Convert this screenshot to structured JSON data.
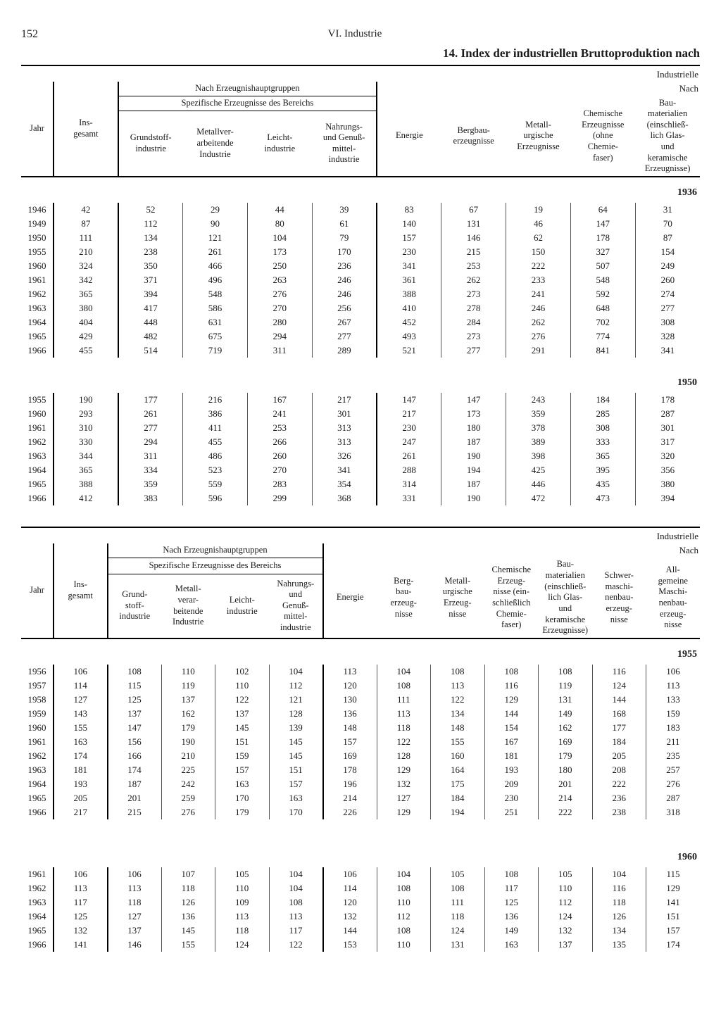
{
  "page_number": "152",
  "section_label": "VI. Industrie",
  "title": "14. Index der industriellen Bruttoproduktion nach",
  "labels": {
    "industrielle": "Industrielle",
    "nach": "Nach",
    "nach_gruppen": "Nach Erzeugnishauptgruppen",
    "spezifische": "Spezifische Erzeugnisse des Bereichs",
    "jahr": "Jahr",
    "insgesamt": "Ins-\ngesamt",
    "grundstoff": "Grundstoff-\nindustrie",
    "grundstoff2": "Grund-\nstoff-\nindustrie",
    "metallver": "Metallver-\narbeitende\nIndustrie",
    "metallver2": "Metall-\nverar-\nbeitende\nIndustrie",
    "leicht": "Leicht-\nindustrie",
    "nahrung": "Nahrungs-\nund Genuß-\nmittel-\nindustrie",
    "nahrung2": "Nahrungs-\nund\nGenuß-\nmittel-\nindustrie",
    "energie": "Energie",
    "bergbau": "Bergbau-\nerzeugnisse",
    "bergbau2": "Berg-\nbau-\nerzeug-\nnisse",
    "metallurg": "Metall-\nurgische\nErzeugnisse",
    "metallurg2": "Metall-\nurgische\nErzeug-\nnisse",
    "chemische": "Chemische\nErzeugnisse\n(ohne\nChemie-\nfaser)",
    "chemische2": "Chemische\nErzeug-\nnisse (ein-\nschließlich\nChemie-\nfaser)",
    "bau": "Bau-\nmaterialien\n(einschließ-\nlich Glas-\nund\nkeramische\nErzeugnisse)",
    "schwer": "Schwer-\nmaschi-\nnenbau-\nerzeug-\nnisse",
    "allg": "All-\ngemeine\nMaschi-\nnenbau-\nerzeug-\nnisse"
  },
  "baseYears": {
    "b1936": "1936",
    "b1950": "1950",
    "b1955": "1955",
    "b1960": "1960"
  },
  "block1": {
    "cols": 11,
    "rows_1936": [
      [
        "1946",
        "42",
        "52",
        "29",
        "44",
        "39",
        "83",
        "67",
        "19",
        "64",
        "31"
      ],
      [
        "1949",
        "87",
        "112",
        "90",
        "80",
        "61",
        "140",
        "131",
        "46",
        "147",
        "70"
      ],
      [
        "1950",
        "111",
        "134",
        "121",
        "104",
        "79",
        "157",
        "146",
        "62",
        "178",
        "87"
      ],
      [
        "1955",
        "210",
        "238",
        "261",
        "173",
        "170",
        "230",
        "215",
        "150",
        "327",
        "154"
      ],
      [
        "1960",
        "324",
        "350",
        "466",
        "250",
        "236",
        "341",
        "253",
        "222",
        "507",
        "249"
      ],
      [
        "1961",
        "342",
        "371",
        "496",
        "263",
        "246",
        "361",
        "262",
        "233",
        "548",
        "260"
      ],
      [
        "1962",
        "365",
        "394",
        "548",
        "276",
        "246",
        "388",
        "273",
        "241",
        "592",
        "274"
      ],
      [
        "1963",
        "380",
        "417",
        "586",
        "270",
        "256",
        "410",
        "278",
        "246",
        "648",
        "277"
      ],
      [
        "1964",
        "404",
        "448",
        "631",
        "280",
        "267",
        "452",
        "284",
        "262",
        "702",
        "308"
      ],
      [
        "1965",
        "429",
        "482",
        "675",
        "294",
        "277",
        "493",
        "273",
        "276",
        "774",
        "328"
      ],
      [
        "1966",
        "455",
        "514",
        "719",
        "311",
        "289",
        "521",
        "277",
        "291",
        "841",
        "341"
      ]
    ],
    "rows_1950": [
      [
        "1955",
        "190",
        "177",
        "216",
        "167",
        "217",
        "147",
        "147",
        "243",
        "184",
        "178"
      ],
      [
        "1960",
        "293",
        "261",
        "386",
        "241",
        "301",
        "217",
        "173",
        "359",
        "285",
        "287"
      ],
      [
        "1961",
        "310",
        "277",
        "411",
        "253",
        "313",
        "230",
        "180",
        "378",
        "308",
        "301"
      ],
      [
        "1962",
        "330",
        "294",
        "455",
        "266",
        "313",
        "247",
        "187",
        "389",
        "333",
        "317"
      ],
      [
        "1963",
        "344",
        "311",
        "486",
        "260",
        "326",
        "261",
        "190",
        "398",
        "365",
        "320"
      ],
      [
        "1964",
        "365",
        "334",
        "523",
        "270",
        "341",
        "288",
        "194",
        "425",
        "395",
        "356"
      ],
      [
        "1965",
        "388",
        "359",
        "559",
        "283",
        "354",
        "314",
        "187",
        "446",
        "435",
        "380"
      ],
      [
        "1966",
        "412",
        "383",
        "596",
        "299",
        "368",
        "331",
        "190",
        "472",
        "473",
        "394"
      ]
    ]
  },
  "block2": {
    "cols": 13,
    "rows_1955": [
      [
        "1956",
        "106",
        "108",
        "110",
        "102",
        "104",
        "113",
        "104",
        "108",
        "108",
        "108",
        "116",
        "106"
      ],
      [
        "1957",
        "114",
        "115",
        "119",
        "110",
        "112",
        "120",
        "108",
        "113",
        "116",
        "119",
        "124",
        "113"
      ],
      [
        "1958",
        "127",
        "125",
        "137",
        "122",
        "121",
        "130",
        "111",
        "122",
        "129",
        "131",
        "144",
        "133"
      ],
      [
        "1959",
        "143",
        "137",
        "162",
        "137",
        "128",
        "136",
        "113",
        "134",
        "144",
        "149",
        "168",
        "159"
      ],
      [
        "1960",
        "155",
        "147",
        "179",
        "145",
        "139",
        "148",
        "118",
        "148",
        "154",
        "162",
        "177",
        "183"
      ],
      [
        "1961",
        "163",
        "156",
        "190",
        "151",
        "145",
        "157",
        "122",
        "155",
        "167",
        "169",
        "184",
        "211"
      ],
      [
        "1962",
        "174",
        "166",
        "210",
        "159",
        "145",
        "169",
        "128",
        "160",
        "181",
        "179",
        "205",
        "235"
      ],
      [
        "1963",
        "181",
        "174",
        "225",
        "157",
        "151",
        "178",
        "129",
        "164",
        "193",
        "180",
        "208",
        "257"
      ],
      [
        "1964",
        "193",
        "187",
        "242",
        "163",
        "157",
        "196",
        "132",
        "175",
        "209",
        "201",
        "222",
        "276"
      ],
      [
        "1965",
        "205",
        "201",
        "259",
        "170",
        "163",
        "214",
        "127",
        "184",
        "230",
        "214",
        "236",
        "287"
      ],
      [
        "1966",
        "217",
        "215",
        "276",
        "179",
        "170",
        "226",
        "129",
        "194",
        "251",
        "222",
        "238",
        "318"
      ]
    ],
    "rows_1960": [
      [
        "1961",
        "106",
        "106",
        "107",
        "105",
        "104",
        "106",
        "104",
        "105",
        "108",
        "105",
        "104",
        "115"
      ],
      [
        "1962",
        "113",
        "113",
        "118",
        "110",
        "104",
        "114",
        "108",
        "108",
        "117",
        "110",
        "116",
        "129"
      ],
      [
        "1963",
        "117",
        "118",
        "126",
        "109",
        "108",
        "120",
        "110",
        "111",
        "125",
        "112",
        "118",
        "141"
      ],
      [
        "1964",
        "125",
        "127",
        "136",
        "113",
        "113",
        "132",
        "112",
        "118",
        "136",
        "124",
        "126",
        "151"
      ],
      [
        "1965",
        "132",
        "137",
        "145",
        "118",
        "117",
        "144",
        "108",
        "124",
        "149",
        "132",
        "134",
        "157"
      ],
      [
        "1966",
        "141",
        "146",
        "155",
        "124",
        "122",
        "153",
        "110",
        "131",
        "163",
        "137",
        "135",
        "174"
      ]
    ]
  }
}
